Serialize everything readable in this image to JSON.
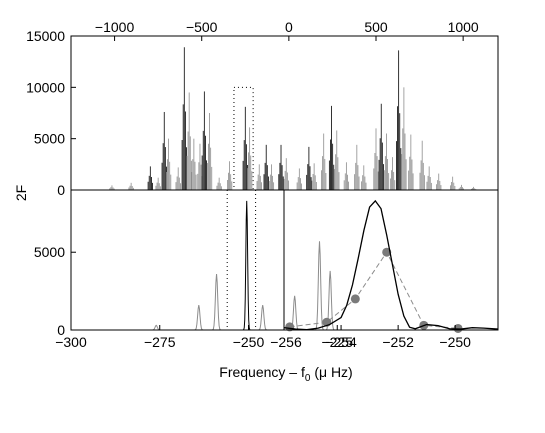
{
  "figure": {
    "ylabel": "2F",
    "xlabel_main": "Frequency – f",
    "xlabel_sub": "0",
    "xlabel_units": " (μ Hz)"
  },
  "chart_data": [
    {
      "type": "line",
      "panel": "top",
      "x_top_ticks": [
        -1000,
        -500,
        0,
        500,
        1000
      ],
      "x_top_tick_labels": [
        "−1000",
        "−500",
        "0",
        "500",
        "1000"
      ],
      "xlim": [
        -1250,
        1200
      ],
      "ylim": [
        0,
        15000
      ],
      "y_ticks": [
        0,
        5000,
        10000,
        15000
      ],
      "y_tick_labels": [
        "0",
        "5000",
        "10000",
        "15000"
      ],
      "peak_groups": [
        {
          "x": -1015,
          "height": 450,
          "color": "#8c8c8c"
        },
        {
          "x": -905,
          "height": 700,
          "color": "#8c8c8c"
        },
        {
          "x": -795,
          "height": 2300,
          "color": "#000000"
        },
        {
          "x": -750,
          "height": 1200,
          "color": "#8c8c8c"
        },
        {
          "x": -715,
          "height": 7600,
          "color": "#000000"
        },
        {
          "x": -690,
          "height": 5000,
          "color": "#8c8c8c"
        },
        {
          "x": -635,
          "height": 2200,
          "color": "#8c8c8c"
        },
        {
          "x": -600,
          "height": 13900,
          "color": "#000000"
        },
        {
          "x": -572,
          "height": 9500,
          "color": "#8c8c8c"
        },
        {
          "x": -545,
          "height": 5000,
          "color": "#8c8c8c"
        },
        {
          "x": -510,
          "height": 4500,
          "color": "#8c8c8c"
        },
        {
          "x": -485,
          "height": 9600,
          "color": "#000000"
        },
        {
          "x": -455,
          "height": 7500,
          "color": "#8c8c8c"
        },
        {
          "x": -400,
          "height": 1200,
          "color": "#8c8c8c"
        },
        {
          "x": -340,
          "height": 2800,
          "color": "#8c8c8c"
        },
        {
          "x": -250,
          "height": 8100,
          "color": "#000000"
        },
        {
          "x": -225,
          "height": 6100,
          "color": "#8c8c8c"
        },
        {
          "x": -170,
          "height": 2500,
          "color": "#8c8c8c"
        },
        {
          "x": -130,
          "height": 4400,
          "color": "#000000"
        },
        {
          "x": -100,
          "height": 2500,
          "color": "#8c8c8c"
        },
        {
          "x": -45,
          "height": 4400,
          "color": "#000000"
        },
        {
          "x": -15,
          "height": 3100,
          "color": "#8c8c8c"
        },
        {
          "x": 60,
          "height": 2100,
          "color": "#8c8c8c"
        },
        {
          "x": 115,
          "height": 4200,
          "color": "#000000"
        },
        {
          "x": 145,
          "height": 2600,
          "color": "#8c8c8c"
        },
        {
          "x": 200,
          "height": 5500,
          "color": "#8c8c8c"
        },
        {
          "x": 245,
          "height": 8200,
          "color": "#000000"
        },
        {
          "x": 275,
          "height": 5800,
          "color": "#8c8c8c"
        },
        {
          "x": 330,
          "height": 2700,
          "color": "#8c8c8c"
        },
        {
          "x": 390,
          "height": 4400,
          "color": "#8c8c8c"
        },
        {
          "x": 430,
          "height": 2400,
          "color": "#8c8c8c"
        },
        {
          "x": 500,
          "height": 6000,
          "color": "#8c8c8c"
        },
        {
          "x": 530,
          "height": 8400,
          "color": "#000000"
        },
        {
          "x": 560,
          "height": 5500,
          "color": "#8c8c8c"
        },
        {
          "x": 595,
          "height": 3200,
          "color": "#8c8c8c"
        },
        {
          "x": 630,
          "height": 13600,
          "color": "#000000"
        },
        {
          "x": 660,
          "height": 10000,
          "color": "#8c8c8c"
        },
        {
          "x": 700,
          "height": 5400,
          "color": "#8c8c8c"
        },
        {
          "x": 765,
          "height": 4800,
          "color": "#8c8c8c"
        },
        {
          "x": 805,
          "height": 2300,
          "color": "#8c8c8c"
        },
        {
          "x": 860,
          "height": 1600,
          "color": "#8c8c8c"
        },
        {
          "x": 940,
          "height": 1300,
          "color": "#8c8c8c"
        },
        {
          "x": 990,
          "height": 500,
          "color": "#8c8c8c"
        },
        {
          "x": 1060,
          "height": 300,
          "color": "#8c8c8c"
        }
      ],
      "dotted_box": {
        "x": [
          -315,
          -205
        ],
        "y": [
          0,
          10000
        ]
      }
    },
    {
      "type": "line",
      "panel": "bottom-left",
      "xlim": [
        -300,
        -240
      ],
      "ylim": [
        0,
        9000
      ],
      "x_ticks": [
        -300,
        -275,
        -250,
        -225
      ],
      "x_tick_labels": [
        "−300",
        "−275",
        "−250",
        "−225"
      ],
      "y_ticks": [
        0,
        5000
      ],
      "y_tick_labels": [
        "0",
        "5000"
      ],
      "series": [
        {
          "color": "#8c8c8c",
          "peaks": [
            {
              "x": -276,
              "height": 300
            },
            {
              "x": -264,
              "height": 1600
            },
            {
              "x": -259,
              "height": 3600
            },
            {
              "x": -246,
              "height": 1600
            },
            {
              "x": -237,
              "height": 2200
            },
            {
              "x": -230,
              "height": 5700
            },
            {
              "x": -227,
              "height": 3800
            }
          ]
        },
        {
          "color": "#000000",
          "peaks": [
            {
              "x": -250.5,
              "height": 8300
            }
          ]
        }
      ],
      "dotted_lines_x": [
        -256,
        -248
      ]
    },
    {
      "type": "line",
      "panel": "bottom-right",
      "xlim": [
        -256,
        -248.5
      ],
      "ylim": [
        0,
        9000
      ],
      "x_ticks": [
        -256,
        -254,
        -252,
        -250
      ],
      "x_tick_labels": [
        "−256",
        "−254",
        "−252",
        "−250"
      ],
      "solid_curve": {
        "x": [
          -256,
          -255.6,
          -255.2,
          -254.8,
          -254.4,
          -254,
          -253.8,
          -253.6,
          -253.4,
          -253.2,
          -253.0,
          -252.8,
          -252.6,
          -252.4,
          -252.2,
          -252.0,
          -251.8,
          -251.6,
          -251.4,
          -251.0,
          -250.6,
          -250.2,
          -249.8,
          -249.4,
          -249.0,
          -248.5
        ],
        "y": [
          150,
          60,
          20,
          120,
          350,
          800,
          1600,
          2900,
          4600,
          6400,
          7900,
          8300,
          7800,
          6100,
          4200,
          2300,
          900,
          180,
          80,
          350,
          280,
          80,
          60,
          150,
          120,
          60
        ]
      },
      "dashed_points": {
        "x": [
          -255.8,
          -254.5,
          -253.5,
          -252.4,
          -251.1,
          -249.9
        ],
        "y": [
          200,
          500,
          2000,
          5000,
          300,
          100
        ]
      }
    }
  ]
}
